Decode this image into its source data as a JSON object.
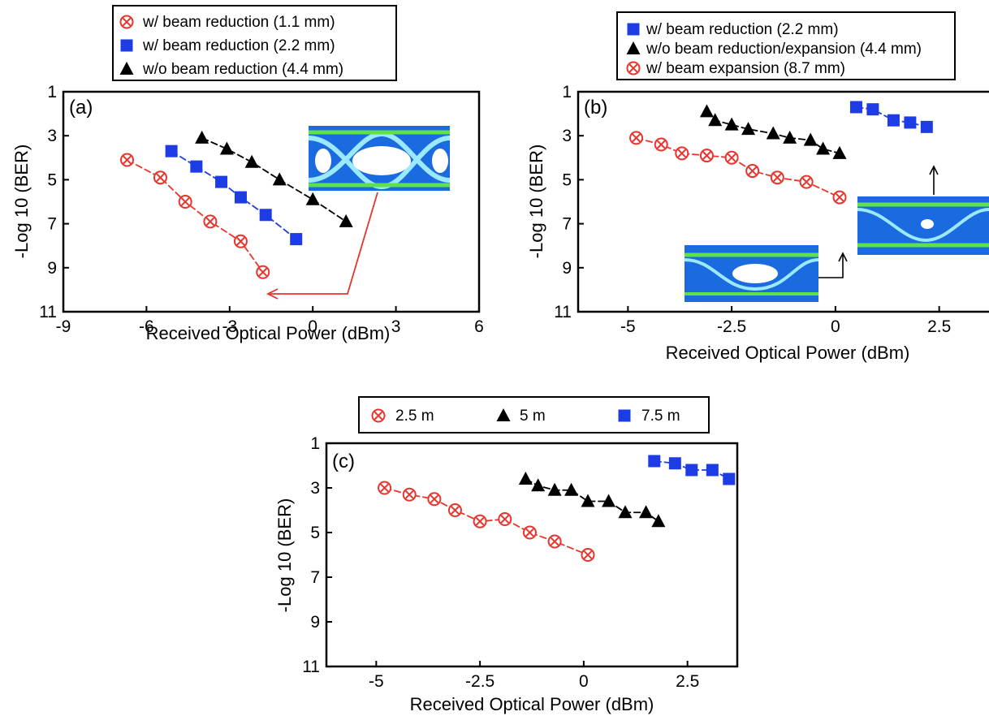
{
  "colors": {
    "red": "#e8342c",
    "blue": "#1e3ce6",
    "black": "#000000"
  },
  "chart_data": [
    {
      "type": "line",
      "panel_label": "(a)",
      "xlabel": "Received Optical Power (dBm)",
      "ylabel": "-Log 10 (BER)",
      "xlim": [
        -9,
        6
      ],
      "ylim": [
        1,
        11
      ],
      "xticks": [
        -9,
        -6,
        -3,
        0,
        3,
        6
      ],
      "xtick_labels": [
        "-9",
        "-6",
        "-3",
        "0",
        "3",
        "6"
      ],
      "yticks": [
        1,
        3,
        5,
        7,
        9,
        11
      ],
      "ytick_labels": [
        "1",
        "3",
        "5",
        "7",
        "9",
        "11"
      ],
      "y_inverted": true,
      "legend_position": "top",
      "inset": "eye-diagram",
      "series": [
        {
          "name": "w/   beam reduction (1.1 mm)",
          "marker": "circle-x",
          "color": "#e8342c",
          "x": [
            -6.7,
            -5.5,
            -4.6,
            -3.7,
            -2.6,
            -1.8
          ],
          "y": [
            4.1,
            4.9,
            6.0,
            6.9,
            7.8,
            9.2
          ]
        },
        {
          "name": "w/   beam reduction (2.2 mm)",
          "marker": "square",
          "color": "#1e3ce6",
          "x": [
            -5.1,
            -4.2,
            -3.3,
            -2.6,
            -1.7,
            -0.6
          ],
          "y": [
            3.7,
            4.4,
            5.1,
            5.8,
            6.6,
            7.7
          ]
        },
        {
          "name": "w/o beam reduction (4.4 mm)",
          "marker": "triangle",
          "color": "#000000",
          "x": [
            -4.0,
            -3.1,
            -2.2,
            -1.2,
            0.0,
            1.2
          ],
          "y": [
            3.1,
            3.6,
            4.2,
            5.0,
            5.9,
            6.9
          ]
        }
      ]
    },
    {
      "type": "line",
      "panel_label": "(b)",
      "xlabel": "Received Optical Power (dBm)",
      "ylabel": "-Log 10 (BER)",
      "xlim": [
        -6.2,
        3.7
      ],
      "ylim": [
        1,
        11
      ],
      "xticks": [
        -5,
        -2.5,
        0,
        2.5
      ],
      "xtick_labels": [
        "-5",
        "-2.5",
        "0",
        "2.5"
      ],
      "yticks": [
        1,
        3,
        5,
        7,
        9,
        11
      ],
      "ytick_labels": [
        "1",
        "3",
        "5",
        "7",
        "9",
        "11"
      ],
      "y_inverted": true,
      "legend_position": "top",
      "inset": "eye-diagrams",
      "series": [
        {
          "name": "w/   beam reduction (2.2 mm)",
          "marker": "square",
          "color": "#1e3ce6",
          "x": [
            0.5,
            0.9,
            1.4,
            1.8,
            2.2
          ],
          "y": [
            1.7,
            1.8,
            2.3,
            2.4,
            2.6
          ]
        },
        {
          "name": "w/o beam reduction/expansion (4.4 mm)",
          "marker": "triangle",
          "color": "#000000",
          "x": [
            -3.1,
            -2.9,
            -2.5,
            -2.1,
            -1.5,
            -1.1,
            -0.6,
            -0.3,
            0.1
          ],
          "y": [
            1.9,
            2.3,
            2.5,
            2.7,
            2.9,
            3.1,
            3.2,
            3.6,
            3.8
          ]
        },
        {
          "name": "w/   beam expansion (8.7 mm)",
          "marker": "circle-x",
          "color": "#e8342c",
          "x": [
            -4.8,
            -4.2,
            -3.7,
            -3.1,
            -2.5,
            -2.0,
            -1.4,
            -0.7,
            0.1
          ],
          "y": [
            3.1,
            3.4,
            3.8,
            3.9,
            4.0,
            4.6,
            4.9,
            5.1,
            5.8
          ]
        }
      ]
    },
    {
      "type": "line",
      "panel_label": "(c)",
      "xlabel": "Received Optical Power (dBm)",
      "ylabel": "-Log 10 (BER)",
      "xlim": [
        -6.2,
        3.7
      ],
      "ylim": [
        1,
        11
      ],
      "xticks": [
        -5,
        -2.5,
        0,
        2.5
      ],
      "xtick_labels": [
        "-5",
        "-2.5",
        "0",
        "2.5"
      ],
      "yticks": [
        1,
        3,
        5,
        7,
        9,
        11
      ],
      "ytick_labels": [
        "1",
        "3",
        "5",
        "7",
        "9",
        "11"
      ],
      "y_inverted": true,
      "legend_position": "top",
      "series": [
        {
          "name": "2.5 m",
          "marker": "circle-x",
          "color": "#e8342c",
          "x": [
            -4.8,
            -4.2,
            -3.6,
            -3.1,
            -2.5,
            -1.9,
            -1.3,
            -0.7,
            0.1
          ],
          "y": [
            3.0,
            3.3,
            3.5,
            4.0,
            4.5,
            4.4,
            5.0,
            5.4,
            6.0
          ]
        },
        {
          "name": "5 m",
          "marker": "triangle",
          "color": "#000000",
          "x": [
            -1.4,
            -1.1,
            -0.7,
            -0.3,
            0.1,
            0.6,
            1.0,
            1.5,
            1.8
          ],
          "y": [
            2.6,
            2.9,
            3.1,
            3.1,
            3.6,
            3.6,
            4.1,
            4.1,
            4.5
          ]
        },
        {
          "name": "7.5 m",
          "marker": "square",
          "color": "#1e3ce6",
          "x": [
            1.7,
            2.2,
            2.6,
            3.1,
            3.5
          ],
          "y": [
            1.8,
            1.9,
            2.2,
            2.2,
            2.6
          ]
        }
      ]
    }
  ]
}
